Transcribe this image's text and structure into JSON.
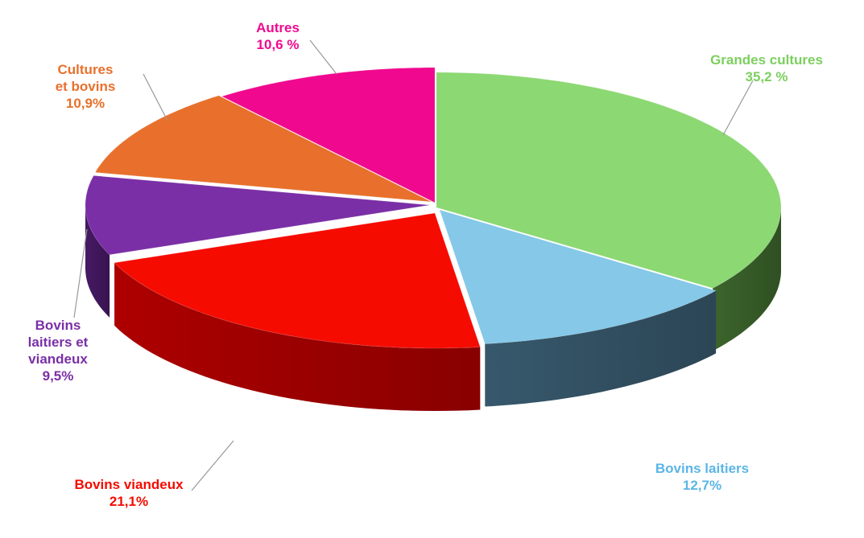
{
  "chart_data": {
    "type": "pie",
    "title": "",
    "categories": [
      "Grandes cultures",
      "Bovins laitiers",
      "Bovins viandeux",
      "Bovins laitiers et viandeux",
      "Cultures et bovins",
      "Autres"
    ],
    "values": [
      35.2,
      12.7,
      21.1,
      9.5,
      10.9,
      10.6
    ],
    "unit": "%",
    "style": "3d-exploded",
    "slices": [
      {
        "label_lines": [
          "Grandes cultures",
          "35,2 %"
        ],
        "value": 35.2,
        "color": "#8cd873",
        "side_color": "#3f6a2e"
      },
      {
        "label_lines": [
          "Bovins laitiers",
          "12,7%"
        ],
        "value": 12.7,
        "color": "#85c8e8",
        "side_color": "#3a5d72"
      },
      {
        "label_lines": [
          "Bovins viandeux",
          "21,1%"
        ],
        "value": 21.1,
        "color": "#f50b00",
        "side_color": "#b60000"
      },
      {
        "label_lines": [
          "Bovins",
          "laitiers et",
          "viandeux",
          "9,5%"
        ],
        "value": 9.5,
        "color": "#7a2fa6",
        "side_color": "#4a1a6a"
      },
      {
        "label_lines": [
          "Cultures",
          "et bovins",
          "10,9%"
        ],
        "value": 10.9,
        "color": "#e8702c",
        "side_color": "#9a4716"
      },
      {
        "label_lines": [
          "Autres",
          "10,6 %"
        ],
        "value": 10.6,
        "color": "#f0098f",
        "side_color": "#9d0760"
      }
    ]
  }
}
